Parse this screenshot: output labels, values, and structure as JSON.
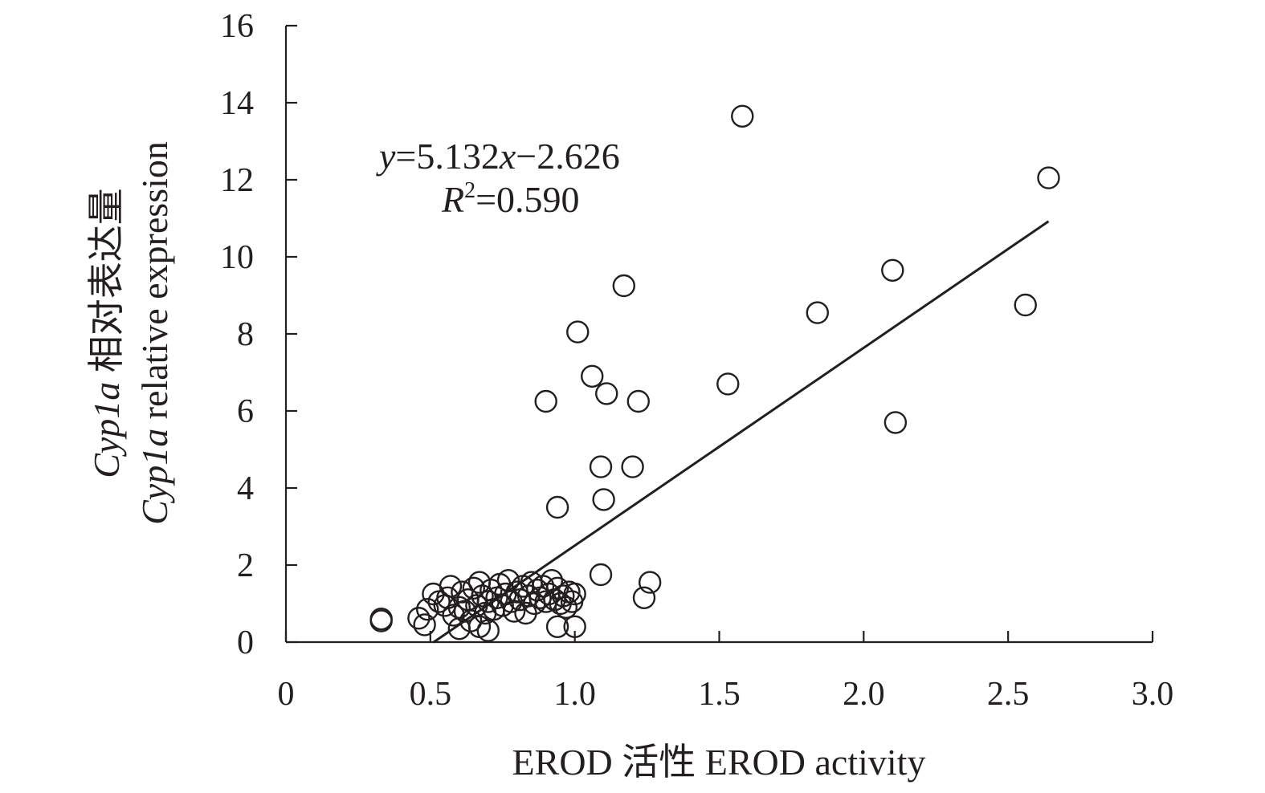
{
  "chart_data": {
    "type": "scatter",
    "xlabel": "EROD 活性 EROD activity",
    "ylabel": {
      "line1_italic": "Cyp1a",
      "line1_rest": " 相对表达量",
      "line2_italic": "Cyp1a",
      "line2_rest": " relative expression"
    },
    "xlim": [
      0,
      3.0
    ],
    "ylim": [
      0,
      16
    ],
    "x_ticks": [
      0,
      0.5,
      1.0,
      1.5,
      2.0,
      2.5,
      3.0
    ],
    "x_tick_labels": [
      "0",
      "0.5",
      "1.0",
      "1.5",
      "2.0",
      "2.5",
      "3.0"
    ],
    "y_ticks": [
      0,
      2,
      4,
      6,
      8,
      10,
      12,
      14,
      16
    ],
    "y_tick_labels": [
      "0",
      "2",
      "4",
      "6",
      "8",
      "10",
      "12",
      "14",
      "16"
    ],
    "grid": false,
    "legend": "none",
    "annotation": {
      "equation_y": "y",
      "equation_rest": "=5.132",
      "equation_x": "x",
      "equation_tail": "−2.626",
      "r_symbol": "R",
      "r_sup": "2",
      "r_value": "=0.590"
    },
    "trendline": {
      "slope": 5.132,
      "intercept": -2.626,
      "x_start": 0.51,
      "x_end": 2.64
    },
    "points": [
      {
        "x": 0.33,
        "y": 0.6
      },
      {
        "x": 0.33,
        "y": 0.55
      },
      {
        "x": 0.46,
        "y": 0.62
      },
      {
        "x": 0.48,
        "y": 0.45
      },
      {
        "x": 0.49,
        "y": 0.85
      },
      {
        "x": 0.51,
        "y": 1.25
      },
      {
        "x": 0.53,
        "y": 1.05
      },
      {
        "x": 0.55,
        "y": 0.95
      },
      {
        "x": 0.56,
        "y": 1.15
      },
      {
        "x": 0.57,
        "y": 1.45
      },
      {
        "x": 0.58,
        "y": 0.7
      },
      {
        "x": 0.6,
        "y": 0.9
      },
      {
        "x": 0.6,
        "y": 0.35
      },
      {
        "x": 0.61,
        "y": 1.3
      },
      {
        "x": 0.62,
        "y": 0.8
      },
      {
        "x": 0.63,
        "y": 1.1
      },
      {
        "x": 0.64,
        "y": 0.55
      },
      {
        "x": 0.65,
        "y": 1.4
      },
      {
        "x": 0.66,
        "y": 0.95
      },
      {
        "x": 0.67,
        "y": 1.55
      },
      {
        "x": 0.67,
        "y": 0.4
      },
      {
        "x": 0.68,
        "y": 1.2
      },
      {
        "x": 0.69,
        "y": 0.75
      },
      {
        "x": 0.7,
        "y": 1.05
      },
      {
        "x": 0.7,
        "y": 0.3
      },
      {
        "x": 0.71,
        "y": 1.35
      },
      {
        "x": 0.72,
        "y": 0.85
      },
      {
        "x": 0.73,
        "y": 1.15
      },
      {
        "x": 0.74,
        "y": 1.5
      },
      {
        "x": 0.75,
        "y": 0.95
      },
      {
        "x": 0.76,
        "y": 1.25
      },
      {
        "x": 0.77,
        "y": 1.6
      },
      {
        "x": 0.78,
        "y": 1.05
      },
      {
        "x": 0.79,
        "y": 0.8
      },
      {
        "x": 0.8,
        "y": 1.3
      },
      {
        "x": 0.81,
        "y": 1.1
      },
      {
        "x": 0.82,
        "y": 1.45
      },
      {
        "x": 0.83,
        "y": 0.75
      },
      {
        "x": 0.84,
        "y": 1.2
      },
      {
        "x": 0.85,
        "y": 1.55
      },
      {
        "x": 0.86,
        "y": 1.0
      },
      {
        "x": 0.87,
        "y": 1.35
      },
      {
        "x": 0.88,
        "y": 1.15
      },
      {
        "x": 0.89,
        "y": 1.45
      },
      {
        "x": 0.9,
        "y": 1.05
      },
      {
        "x": 0.91,
        "y": 1.25
      },
      {
        "x": 0.92,
        "y": 1.6
      },
      {
        "x": 0.93,
        "y": 1.1
      },
      {
        "x": 0.94,
        "y": 1.4
      },
      {
        "x": 0.95,
        "y": 1.0
      },
      {
        "x": 0.96,
        "y": 1.2
      },
      {
        "x": 0.97,
        "y": 0.9
      },
      {
        "x": 0.98,
        "y": 1.3
      },
      {
        "x": 0.99,
        "y": 1.05
      },
      {
        "x": 1.0,
        "y": 1.25
      },
      {
        "x": 1.0,
        "y": 0.4
      },
      {
        "x": 0.94,
        "y": 0.4
      },
      {
        "x": 0.9,
        "y": 6.25
      },
      {
        "x": 0.94,
        "y": 3.5
      },
      {
        "x": 1.01,
        "y": 8.05
      },
      {
        "x": 1.06,
        "y": 6.9
      },
      {
        "x": 1.09,
        "y": 4.55
      },
      {
        "x": 1.1,
        "y": 3.7
      },
      {
        "x": 1.09,
        "y": 1.75
      },
      {
        "x": 1.11,
        "y": 6.45
      },
      {
        "x": 1.17,
        "y": 9.25
      },
      {
        "x": 1.2,
        "y": 4.55
      },
      {
        "x": 1.22,
        "y": 6.25
      },
      {
        "x": 1.24,
        "y": 1.15
      },
      {
        "x": 1.26,
        "y": 1.55
      },
      {
        "x": 1.53,
        "y": 6.7
      },
      {
        "x": 1.58,
        "y": 13.65
      },
      {
        "x": 1.84,
        "y": 8.55
      },
      {
        "x": 2.1,
        "y": 9.65
      },
      {
        "x": 2.11,
        "y": 5.7
      },
      {
        "x": 2.56,
        "y": 8.75
      },
      {
        "x": 2.64,
        "y": 12.05
      }
    ]
  }
}
